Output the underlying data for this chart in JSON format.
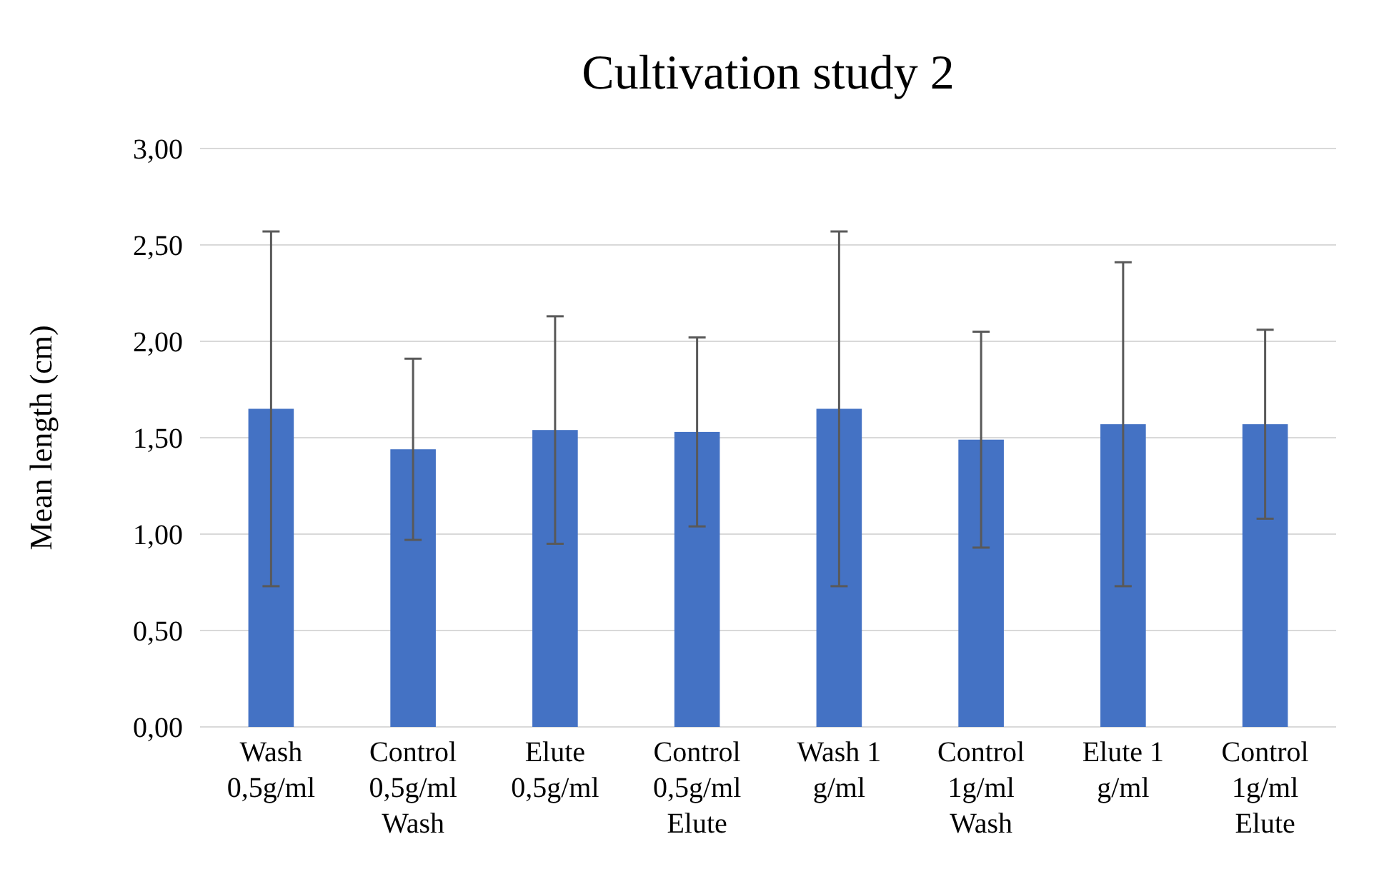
{
  "chart_data": {
    "type": "bar",
    "title": "Cultivation study 2",
    "ylabel": "Mean length (cm)",
    "categories": [
      "Wash\n0,5g/ml",
      "Control\n0,5g/ml\nWash",
      "Elute\n0,5g/ml",
      "Control\n0,5g/ml\nElute",
      "Wash 1\ng/ml",
      "Control\n1g/ml\nWash",
      "Elute 1\ng/ml",
      "Control\n1g/ml\nElute"
    ],
    "values": [
      1.65,
      1.44,
      1.54,
      1.53,
      1.65,
      1.49,
      1.57,
      1.57
    ],
    "errors": [
      0.92,
      0.47,
      0.59,
      0.49,
      0.92,
      0.56,
      0.84,
      0.49
    ],
    "color": "#4472c4",
    "ylim": [
      0,
      3
    ],
    "yticks": [
      {
        "value": 0,
        "label": "0,00"
      },
      {
        "value": 0.5,
        "label": "0,50"
      },
      {
        "value": 1,
        "label": "1,00"
      },
      {
        "value": 1.5,
        "label": "1,50"
      },
      {
        "value": 2,
        "label": "2,00"
      },
      {
        "value": 2.5,
        "label": "2,50"
      },
      {
        "value": 3,
        "label": "3,00"
      }
    ],
    "grid": "y"
  }
}
